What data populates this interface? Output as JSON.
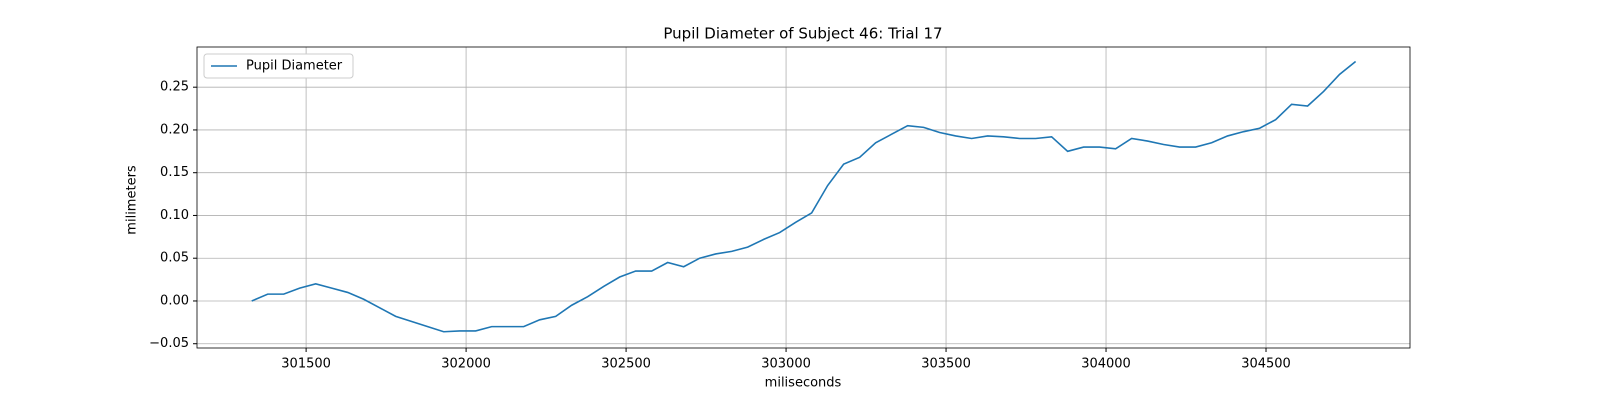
{
  "chart_data": {
    "type": "line",
    "title": "Pupil Diameter of Subject 46: Trial 17",
    "x_label": "miliseconds",
    "y_label": "milimeters",
    "x": [
      301330,
      301380,
      301430,
      301480,
      301530,
      301580,
      301630,
      301680,
      301730,
      301780,
      301830,
      301880,
      301930,
      301980,
      302030,
      302080,
      302130,
      302180,
      302230,
      302280,
      302330,
      302380,
      302430,
      302480,
      302530,
      302580,
      302630,
      302680,
      302730,
      302780,
      302830,
      302880,
      302930,
      302980,
      303030,
      303080,
      303130,
      303180,
      303230,
      303280,
      303330,
      303380,
      303430,
      303480,
      303530,
      303580,
      303630,
      303680,
      303730,
      303780,
      303830,
      303880,
      303930,
      303980,
      304030,
      304080,
      304130,
      304180,
      304230,
      304280,
      304330,
      304380,
      304430,
      304480,
      304530,
      304580,
      304630,
      304680,
      304730,
      304780
    ],
    "series": [
      {
        "name": "Pupil Diameter",
        "color": "#1f77b4",
        "values": [
          0,
          0.008,
          0.008,
          0.015,
          0.02,
          0.015,
          0.01,
          0.002,
          -0.008,
          -0.018,
          -0.024,
          -0.03,
          -0.036,
          -0.035,
          -0.035,
          -0.03,
          -0.03,
          -0.03,
          -0.022,
          -0.018,
          -0.005,
          0.005,
          0.017,
          0.028,
          0.035,
          0.035,
          0.045,
          0.04,
          0.05,
          0.055,
          0.058,
          0.063,
          0.072,
          0.08,
          0.092,
          0.103,
          0.135,
          0.16,
          0.168,
          0.185,
          0.195,
          0.205,
          0.203,
          0.197,
          0.193,
          0.19,
          0.193,
          0.192,
          0.19,
          0.19,
          0.192,
          0.175,
          0.18,
          0.18,
          0.178,
          0.19,
          0.187,
          0.183,
          0.18,
          0.18,
          0.185,
          0.193,
          0.198,
          0.202,
          0.212,
          0.23,
          0.228,
          0.245,
          0.265,
          0.28
        ]
      }
    ],
    "xlim": [
      301159,
      304950
    ],
    "ylim": [
      -0.055,
      0.297
    ],
    "xticks": [
      301500,
      302000,
      302500,
      303000,
      303500,
      304000,
      304500
    ],
    "yticks": [
      {
        "value": -0.05,
        "label": "−0.05"
      },
      {
        "value": 0,
        "label": "0.00"
      },
      0.05,
      {
        "value": 0.1,
        "label": "0.10"
      },
      0.15,
      {
        "value": 0.2,
        "label": "0.20"
      },
      0.25
    ],
    "grid": true,
    "legend": "upper left"
  }
}
